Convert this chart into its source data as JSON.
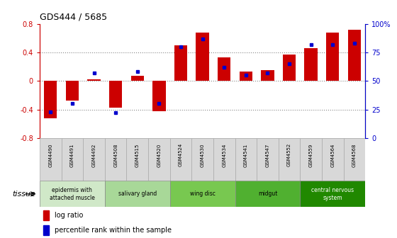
{
  "title": "GDS444 / 5685",
  "samples": [
    "GSM4490",
    "GSM4491",
    "GSM4492",
    "GSM4508",
    "GSM4515",
    "GSM4520",
    "GSM4524",
    "GSM4530",
    "GSM4534",
    "GSM4541",
    "GSM4547",
    "GSM4552",
    "GSM4559",
    "GSM4564",
    "GSM4568"
  ],
  "log_ratio": [
    -0.52,
    -0.28,
    0.02,
    -0.37,
    0.07,
    -0.42,
    0.5,
    0.68,
    0.33,
    0.13,
    0.15,
    0.37,
    0.46,
    0.68,
    0.72
  ],
  "percentile": [
    23,
    30,
    57,
    22,
    58,
    30,
    80,
    87,
    62,
    55,
    57,
    65,
    82,
    82,
    83
  ],
  "bar_color": "#cc0000",
  "dot_color": "#0000cc",
  "bg_color": "#ffffff",
  "ylim": [
    -0.8,
    0.8
  ],
  "y_ticks_left": [
    -0.8,
    -0.4,
    0.0,
    0.4,
    0.8
  ],
  "y_ticks_right": [
    0,
    25,
    50,
    75,
    100
  ],
  "dotted_lines": [
    -0.4,
    0.0,
    0.4
  ],
  "tissue_colors": [
    "#d0e8c8",
    "#a8d898",
    "#78c850",
    "#50b030",
    "#208800"
  ],
  "tissue_text_colors": [
    "#000000",
    "#000000",
    "#000000",
    "#000000",
    "#ffffff"
  ],
  "tissue_labels": [
    "epidermis with\nattached muscle",
    "salivary gland",
    "wing disc",
    "midgut",
    "central nervous\nsystem"
  ],
  "tissue_ranges": [
    [
      0,
      3
    ],
    [
      3,
      6
    ],
    [
      6,
      9
    ],
    [
      9,
      12
    ],
    [
      12,
      15
    ]
  ],
  "tissue_label": "tissue",
  "legend_log_ratio": "log ratio",
  "legend_percentile": "percentile rank within the sample",
  "left_axis_color": "#cc0000",
  "right_axis_color": "#0000cc",
  "sample_box_color": "#d8d8d8"
}
